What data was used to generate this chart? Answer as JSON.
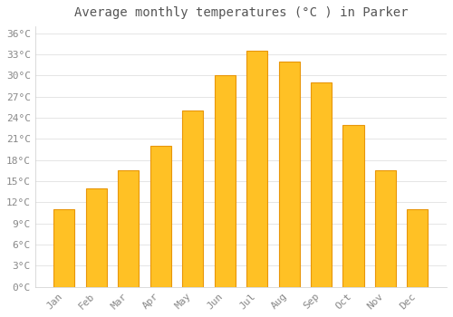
{
  "title": "Average monthly temperatures (°C ) in Parker",
  "months": [
    "Jan",
    "Feb",
    "Mar",
    "Apr",
    "May",
    "Jun",
    "Jul",
    "Aug",
    "Sep",
    "Oct",
    "Nov",
    "Dec"
  ],
  "values": [
    11,
    14,
    16.5,
    20,
    25,
    30,
    33.5,
    32,
    29,
    23,
    16.5,
    11
  ],
  "bar_color": "#FFC125",
  "bar_edge_color": "#E8960A",
  "background_color": "#FFFFFF",
  "grid_color": "#E0E0E0",
  "ylim": [
    0,
    37
  ],
  "yticks": [
    0,
    3,
    6,
    9,
    12,
    15,
    18,
    21,
    24,
    27,
    30,
    33,
    36
  ],
  "ytick_labels": [
    "0°C",
    "3°C",
    "6°C",
    "9°C",
    "12°C",
    "15°C",
    "18°C",
    "21°C",
    "24°C",
    "27°C",
    "30°C",
    "33°C",
    "36°C"
  ],
  "title_fontsize": 10,
  "tick_fontsize": 8,
  "font_family": "monospace",
  "tick_color": "#888888",
  "title_color": "#555555",
  "bar_width": 0.65
}
